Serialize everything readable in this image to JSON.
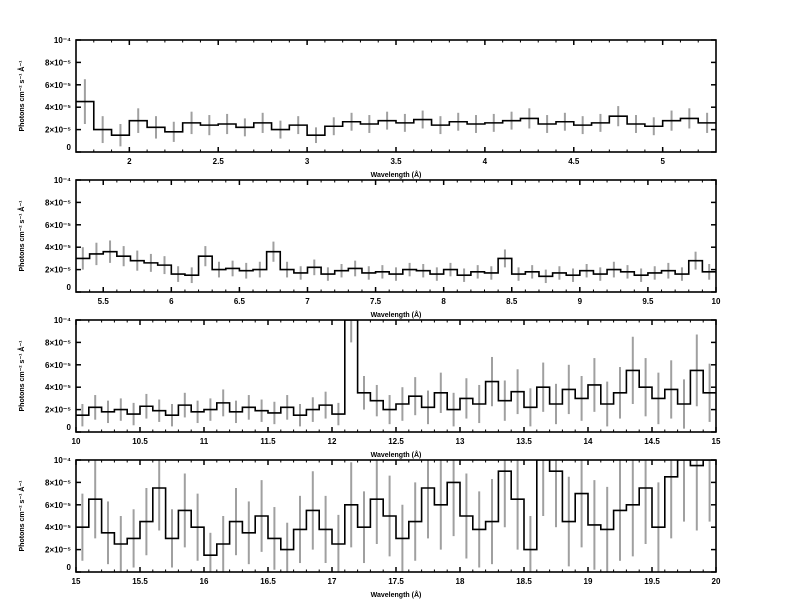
{
  "chart_data": [
    {
      "type": "line",
      "style": "step-with-errorbars",
      "xlabel": "Wavelength (Å)",
      "ylabel": "Photons cm⁻² s⁻¹ Å⁻¹",
      "xlim": [
        1.7,
        5.3
      ],
      "ylim": [
        0,
        0.0001
      ],
      "xticks": [
        2,
        2.5,
        3,
        3.5,
        4,
        4.5,
        5
      ],
      "xtick_labels": [
        "2",
        "2.5",
        "3",
        "3.5",
        "4",
        "4.5",
        "5"
      ],
      "yticks": [
        0,
        2e-05,
        4e-05,
        6e-05,
        8e-05,
        0.0001
      ],
      "ytick_labels": [
        "0",
        "2×10⁻⁵",
        "4×10⁻⁵",
        "6×10⁻⁵",
        "8×10⁻⁵",
        "10⁻⁴"
      ],
      "bin_width": 0.1,
      "x_start": 1.7,
      "y": [
        4.5e-05,
        2e-05,
        1.5e-05,
        2.8e-05,
        2.2e-05,
        1.8e-05,
        2.6e-05,
        2.4e-05,
        2.5e-05,
        2.2e-05,
        2.6e-05,
        2e-05,
        2.4e-05,
        1.5e-05,
        2.3e-05,
        2.7e-05,
        2.5e-05,
        2.8e-05,
        2.6e-05,
        2.9e-05,
        2.4e-05,
        2.7e-05,
        2.5e-05,
        2.6e-05,
        2.8e-05,
        3e-05,
        2.5e-05,
        2.7e-05,
        2.4e-05,
        2.6e-05,
        3.2e-05,
        2.5e-05,
        2.3e-05,
        2.8e-05,
        3e-05,
        2.6e-05
      ],
      "err": [
        2e-05,
        1.2e-05,
        1e-05,
        1.1e-05,
        1e-05,
        9e-06,
        1e-05,
        9e-06,
        9e-06,
        8e-06,
        9e-06,
        8e-06,
        8e-06,
        7e-06,
        8e-06,
        8e-06,
        8e-06,
        8e-06,
        8e-06,
        8e-06,
        8e-06,
        8e-06,
        8e-06,
        8e-06,
        8e-06,
        9e-06,
        8e-06,
        8e-06,
        8e-06,
        8e-06,
        9e-06,
        8e-06,
        8e-06,
        9e-06,
        9e-06,
        9e-06
      ],
      "grid": false,
      "colors": {
        "line": "#000000",
        "errorbar": "#a0a0a0"
      }
    },
    {
      "type": "line",
      "style": "step-with-errorbars",
      "xlabel": "Wavelength (Å)",
      "ylabel": "Photons cm⁻² s⁻¹ Å⁻¹",
      "xlim": [
        5.3,
        10
      ],
      "ylim": [
        0,
        0.0001
      ],
      "xticks": [
        5.5,
        6,
        6.5,
        7,
        7.5,
        8,
        8.5,
        9,
        9.5,
        10
      ],
      "xtick_labels": [
        "5.5",
        "6",
        "6.5",
        "7",
        "7.5",
        "8",
        "8.5",
        "9",
        "9.5",
        "10"
      ],
      "yticks": [
        0,
        2e-05,
        4e-05,
        6e-05,
        8e-05,
        0.0001
      ],
      "ytick_labels": [
        "0",
        "2×10⁻⁵",
        "4×10⁻⁵",
        "6×10⁻⁵",
        "8×10⁻⁵",
        "10⁻⁴"
      ],
      "bin_width": 0.1,
      "x_start": 5.3,
      "y": [
        3e-05,
        3.4e-05,
        3.6e-05,
        3.2e-05,
        2.8e-05,
        2.6e-05,
        2.4e-05,
        1.6e-05,
        1.5e-05,
        3.2e-05,
        2e-05,
        2.1e-05,
        1.9e-05,
        2e-05,
        3.6e-05,
        2e-05,
        1.7e-05,
        2.2e-05,
        1.6e-05,
        1.9e-05,
        2.1e-05,
        1.7e-05,
        1.8e-05,
        1.6e-05,
        2e-05,
        1.9e-05,
        1.6e-05,
        2e-05,
        1.5e-05,
        1.8e-05,
        1.7e-05,
        3e-05,
        1.6e-05,
        1.8e-05,
        1.4e-05,
        1.7e-05,
        1.5e-05,
        1.9e-05,
        1.6e-05,
        2e-05,
        1.8e-05,
        1.5e-05,
        1.7e-05,
        1.9e-05,
        1.6e-05,
        2.8e-05,
        1.8e-05
      ],
      "err": [
        1e-05,
        1e-05,
        1e-05,
        9e-06,
        9e-06,
        8e-06,
        8e-06,
        7e-06,
        7e-06,
        9e-06,
        7e-06,
        7e-06,
        7e-06,
        7e-06,
        9e-06,
        7e-06,
        6e-06,
        7e-06,
        6e-06,
        6e-06,
        7e-06,
        6e-06,
        6e-06,
        6e-06,
        6e-06,
        6e-06,
        6e-06,
        6e-06,
        6e-06,
        6e-06,
        6e-06,
        8e-06,
        6e-06,
        6e-06,
        6e-06,
        6e-06,
        6e-06,
        6e-06,
        6e-06,
        7e-06,
        6e-06,
        6e-06,
        6e-06,
        7e-06,
        6e-06,
        8e-06,
        7e-06
      ],
      "grid": false,
      "colors": {
        "line": "#000000",
        "errorbar": "#a0a0a0"
      }
    },
    {
      "type": "line",
      "style": "step-with-errorbars",
      "xlabel": "Wavelength (Å)",
      "ylabel": "Photons cm⁻² s⁻¹ Å⁻¹",
      "xlim": [
        10,
        15
      ],
      "ylim": [
        0,
        0.0001
      ],
      "xticks": [
        10,
        10.5,
        11,
        11.5,
        12,
        12.5,
        13,
        13.5,
        14,
        14.5,
        15
      ],
      "xtick_labels": [
        "10",
        "10.5",
        "11",
        "11.5",
        "12",
        "12.5",
        "13",
        "13.5",
        "14",
        "14.5",
        "15"
      ],
      "yticks": [
        0,
        2e-05,
        4e-05,
        6e-05,
        8e-05,
        0.0001
      ],
      "ytick_labels": [
        "0",
        "2×10⁻⁵",
        "4×10⁻⁵",
        "6×10⁻⁵",
        "8×10⁻⁵",
        "10⁻⁴"
      ],
      "bin_width": 0.1,
      "x_start": 10,
      "y": [
        1.5e-05,
        2.2e-05,
        1.8e-05,
        2e-05,
        1.6e-05,
        2.3e-05,
        1.9e-05,
        1.5e-05,
        2.4e-05,
        1.8e-05,
        2e-05,
        2.6e-05,
        1.8e-05,
        2.2e-05,
        1.9e-05,
        1.7e-05,
        2.2e-05,
        1.5e-05,
        2e-05,
        2.4e-05,
        1.6e-05,
        0.000105,
        3.5e-05,
        2.8e-05,
        2e-05,
        2.5e-05,
        3.2e-05,
        2.2e-05,
        3.5e-05,
        2e-05,
        3e-05,
        2.5e-05,
        4.5e-05,
        2.8e-05,
        3.6e-05,
        2.2e-05,
        4e-05,
        2.5e-05,
        3.8e-05,
        3e-05,
        4.2e-05,
        2.5e-05,
        3.5e-05,
        5.5e-05,
        4e-05,
        3e-05,
        3.8e-05,
        2.5e-05,
        5.5e-05,
        3.5e-05
      ],
      "err": [
        1e-05,
        1.1e-05,
        1e-05,
        1e-05,
        1e-05,
        1.1e-05,
        1e-05,
        1e-05,
        1.1e-05,
        1e-05,
        1e-05,
        1.2e-05,
        1e-05,
        1.1e-05,
        1e-05,
        1e-05,
        1.1e-05,
        1e-05,
        1.1e-05,
        1.2e-05,
        1e-05,
        2.5e-05,
        1.5e-05,
        1.4e-05,
        1.3e-05,
        1.5e-05,
        1.7e-05,
        1.5e-05,
        1.8e-05,
        1.5e-05,
        1.8e-05,
        1.7e-05,
        2.2e-05,
        1.8e-05,
        2e-05,
        1.7e-05,
        2.2e-05,
        1.8e-05,
        2.2e-05,
        2e-05,
        2.4e-05,
        2e-05,
        2.3e-05,
        3e-05,
        2.6e-05,
        2.3e-05,
        2.6e-05,
        2.2e-05,
        3.2e-05,
        2.6e-05
      ],
      "grid": false,
      "colors": {
        "line": "#000000",
        "errorbar": "#a0a0a0"
      }
    },
    {
      "type": "line",
      "style": "step-with-errorbars",
      "xlabel": "Wavelength (Å)",
      "ylabel": "Photons cm⁻² s⁻¹ Å⁻¹",
      "xlim": [
        15,
        20
      ],
      "ylim": [
        0,
        0.0001
      ],
      "xticks": [
        15,
        15.5,
        16,
        16.5,
        17,
        17.5,
        18,
        18.5,
        19,
        19.5,
        20
      ],
      "xtick_labels": [
        "15",
        "15.5",
        "16",
        "16.5",
        "17",
        "17.5",
        "18",
        "18.5",
        "19",
        "19.5",
        "20"
      ],
      "yticks": [
        0,
        2e-05,
        4e-05,
        6e-05,
        8e-05,
        0.0001
      ],
      "ytick_labels": [
        "0",
        "2×10⁻⁵",
        "4×10⁻⁵",
        "6×10⁻⁵",
        "8×10⁻⁵",
        "10⁻⁴"
      ],
      "bin_width": 0.1,
      "x_start": 15,
      "y": [
        4e-05,
        6.5e-05,
        3.5e-05,
        2.5e-05,
        3e-05,
        4.5e-05,
        7.5e-05,
        3e-05,
        5.5e-05,
        4e-05,
        1.5e-05,
        2.5e-05,
        4.5e-05,
        3.5e-05,
        5e-05,
        3e-05,
        2e-05,
        3.8e-05,
        5.5e-05,
        3.8e-05,
        2.5e-05,
        6e-05,
        4e-05,
        6.5e-05,
        5e-05,
        3e-05,
        4.5e-05,
        7.5e-05,
        6e-05,
        8e-05,
        5e-05,
        3.8e-05,
        4.5e-05,
        9e-05,
        6.5e-05,
        2e-05,
        0.000105,
        9e-05,
        4.5e-05,
        7e-05,
        4.2e-05,
        3.8e-05,
        5.5e-05,
        6e-05,
        7.5e-05,
        4e-05,
        8.5e-05,
        0.000105,
        9.5e-05,
        0.000105
      ],
      "err": [
        3e-05,
        3.5e-05,
        2.8e-05,
        2.5e-05,
        2.6e-05,
        3e-05,
        3.8e-05,
        2.6e-05,
        3.3e-05,
        3e-05,
        2e-05,
        2.5e-05,
        3e-05,
        2.8e-05,
        3.2e-05,
        2.8e-05,
        2.4e-05,
        3e-05,
        3.5e-05,
        3e-05,
        2.6e-05,
        3.8e-05,
        3.2e-05,
        4e-05,
        3.6e-05,
        3e-05,
        3.5e-05,
        4.5e-05,
        4e-05,
        4.8e-05,
        3.8e-05,
        3.4e-05,
        3.8e-05,
        5e-05,
        4.5e-05,
        3e-05,
        5.5e-05,
        5e-05,
        4e-05,
        4.8e-05,
        4e-05,
        3.8e-05,
        4.5e-05,
        4.6e-05,
        5e-05,
        4e-05,
        5.5e-05,
        6e-05,
        5.8e-05,
        6e-05
      ],
      "grid": false,
      "colors": {
        "line": "#000000",
        "errorbar": "#a0a0a0"
      }
    }
  ]
}
